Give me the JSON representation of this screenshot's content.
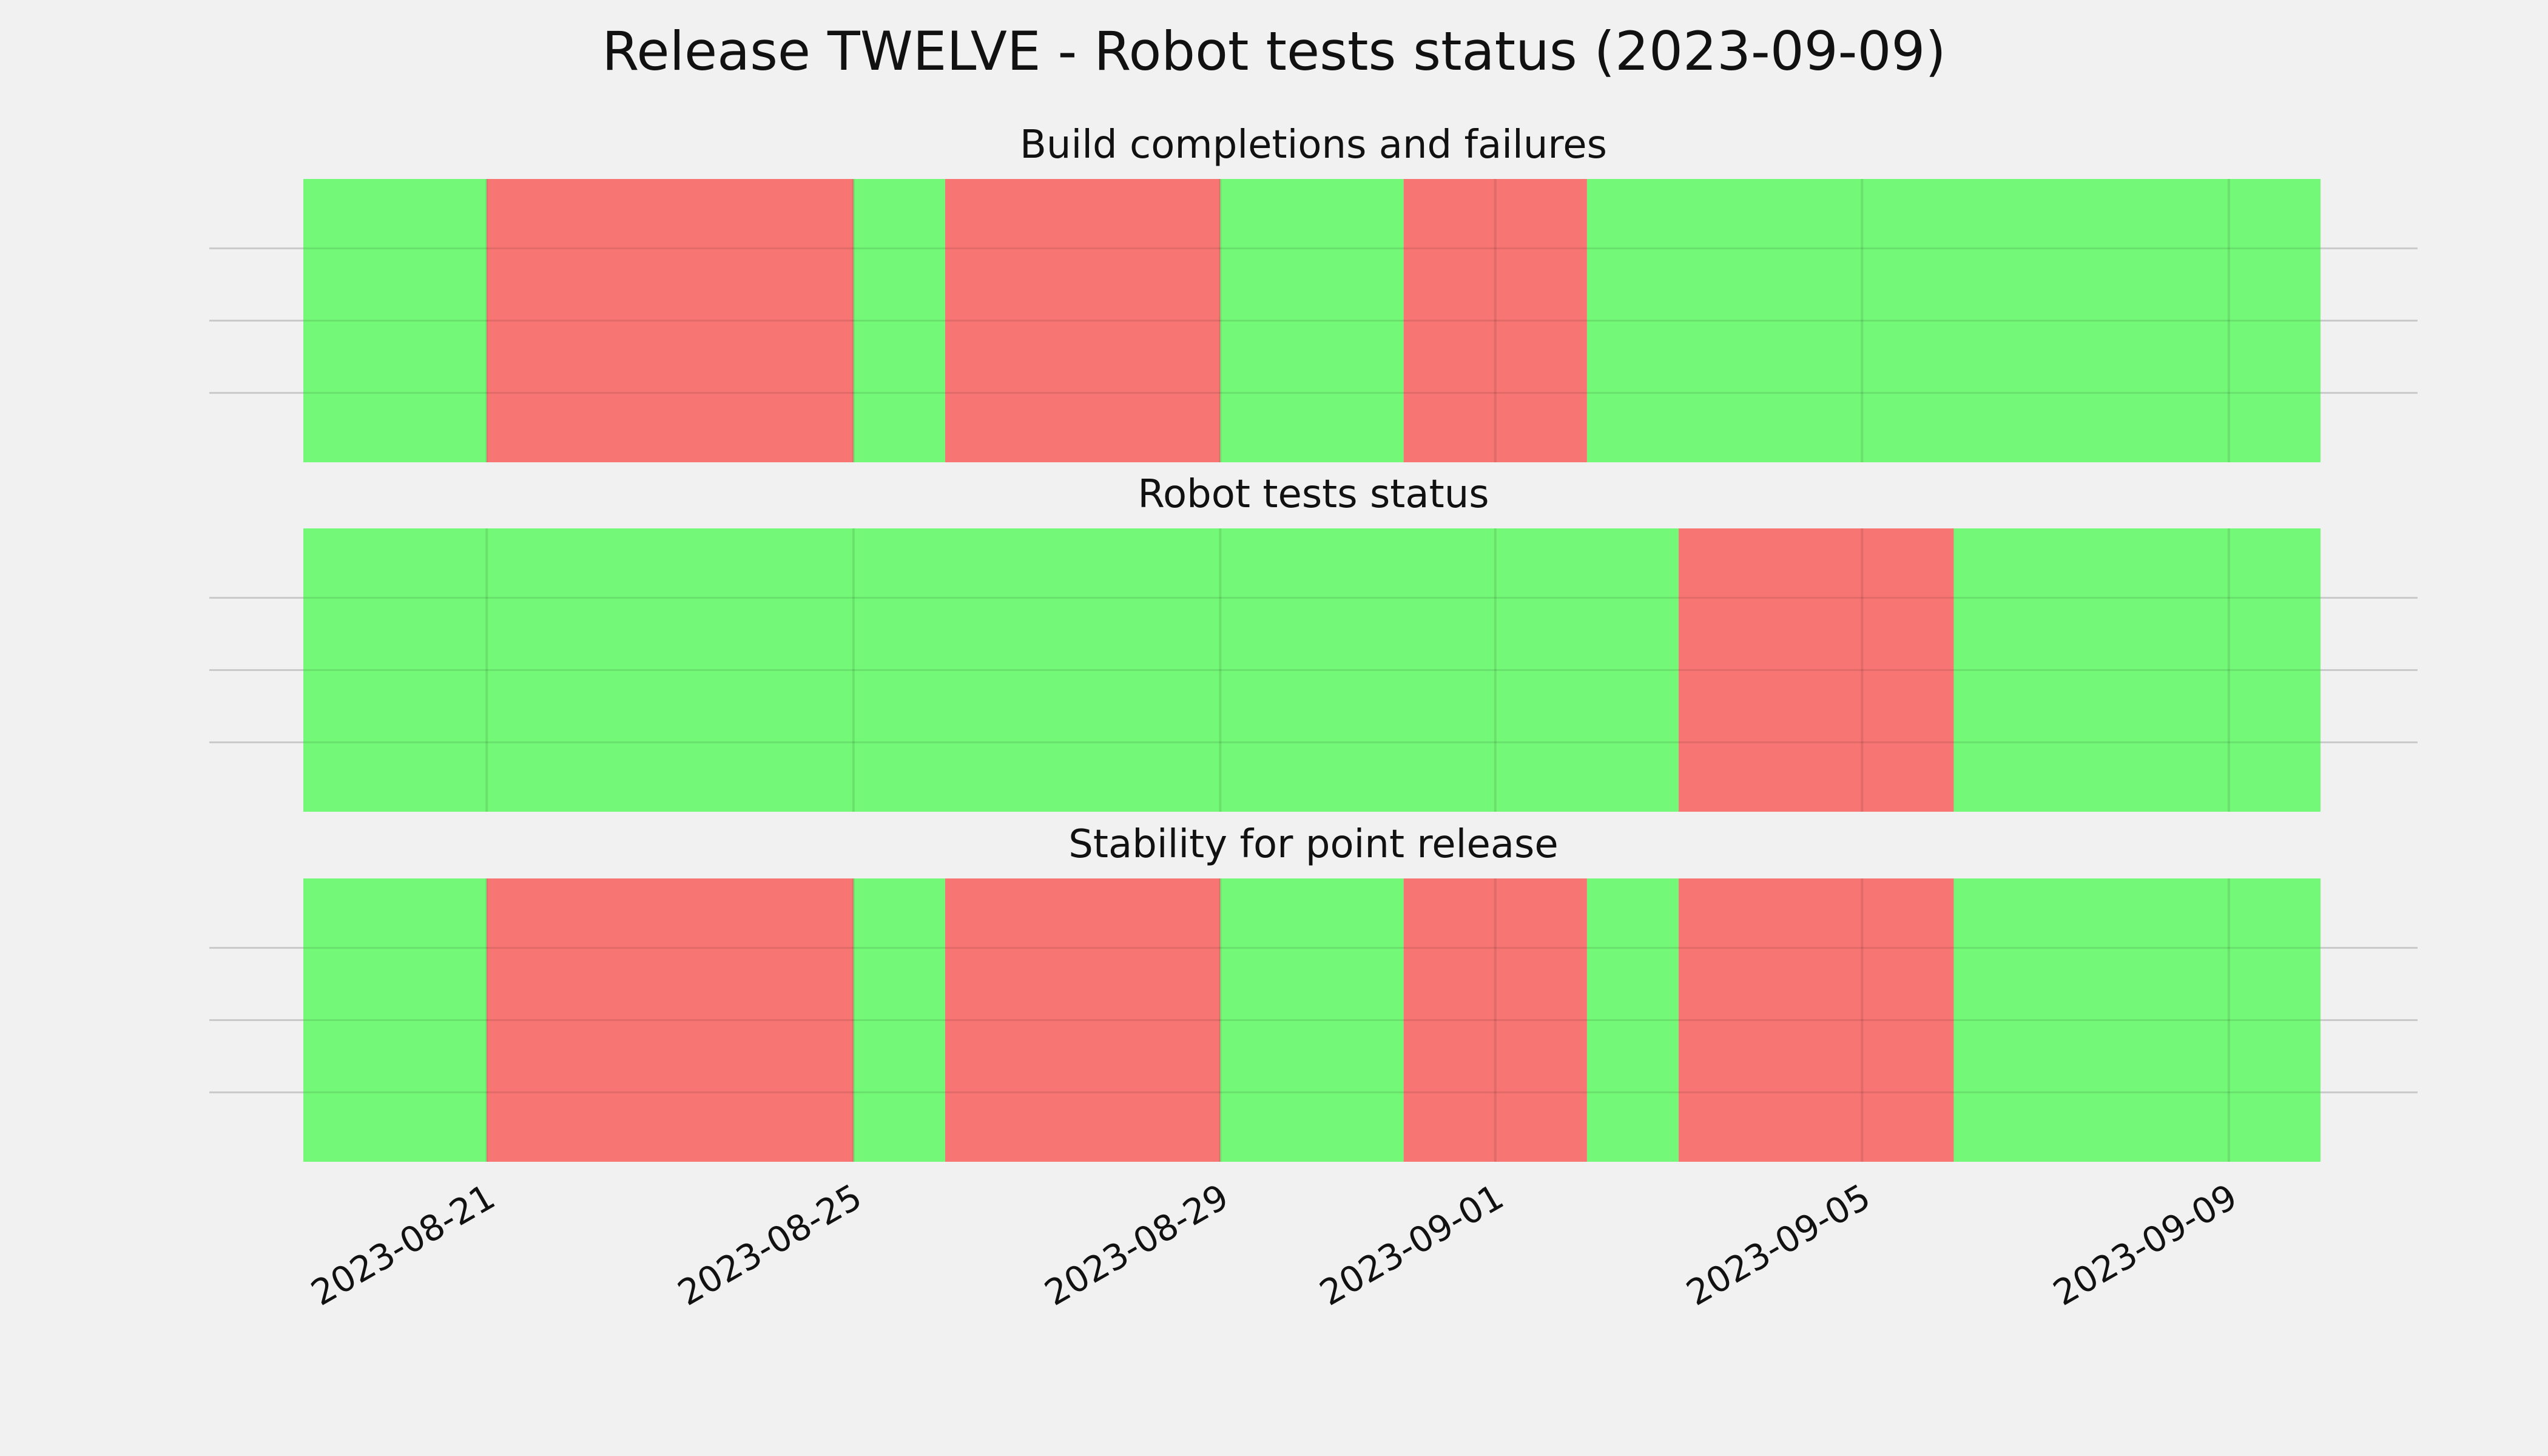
{
  "chart_data": {
    "type": "timeline",
    "title": "Release TWELVE - Robot tests status (2023-09-09)",
    "x_ticks": [
      "2023-08-21",
      "2023-08-25",
      "2023-08-29",
      "2023-09-01",
      "2023-09-05",
      "2023-09-09"
    ],
    "xlim": [
      "2023-08-19",
      "2023-09-10"
    ],
    "grid": true,
    "status_colors": {
      "pass": "#74f877",
      "fail": "#f77673"
    },
    "panels": [
      {
        "title": "Build completions and failures",
        "segments": [
          {
            "start": "2023-08-19",
            "end": "2023-08-21",
            "status": "pass"
          },
          {
            "start": "2023-08-21",
            "end": "2023-08-25",
            "status": "fail"
          },
          {
            "start": "2023-08-25",
            "end": "2023-08-26",
            "status": "pass"
          },
          {
            "start": "2023-08-26",
            "end": "2023-08-29",
            "status": "fail"
          },
          {
            "start": "2023-08-29",
            "end": "2023-08-31",
            "status": "pass"
          },
          {
            "start": "2023-08-31",
            "end": "2023-09-02",
            "status": "fail"
          },
          {
            "start": "2023-09-02",
            "end": "2023-09-10",
            "status": "pass"
          }
        ]
      },
      {
        "title": "Robot tests status",
        "segments": [
          {
            "start": "2023-08-19",
            "end": "2023-09-03",
            "status": "pass"
          },
          {
            "start": "2023-09-03",
            "end": "2023-09-06",
            "status": "fail"
          },
          {
            "start": "2023-09-06",
            "end": "2023-09-10",
            "status": "pass"
          }
        ]
      },
      {
        "title": "Stability for point release",
        "segments": [
          {
            "start": "2023-08-19",
            "end": "2023-08-21",
            "status": "pass"
          },
          {
            "start": "2023-08-21",
            "end": "2023-08-25",
            "status": "fail"
          },
          {
            "start": "2023-08-25",
            "end": "2023-08-26",
            "status": "pass"
          },
          {
            "start": "2023-08-26",
            "end": "2023-08-29",
            "status": "fail"
          },
          {
            "start": "2023-08-29",
            "end": "2023-08-31",
            "status": "pass"
          },
          {
            "start": "2023-08-31",
            "end": "2023-09-02",
            "status": "fail"
          },
          {
            "start": "2023-09-02",
            "end": "2023-09-03",
            "status": "pass"
          },
          {
            "start": "2023-09-03",
            "end": "2023-09-06",
            "status": "fail"
          },
          {
            "start": "2023-09-06",
            "end": "2023-09-10",
            "status": "pass"
          }
        ]
      }
    ]
  }
}
